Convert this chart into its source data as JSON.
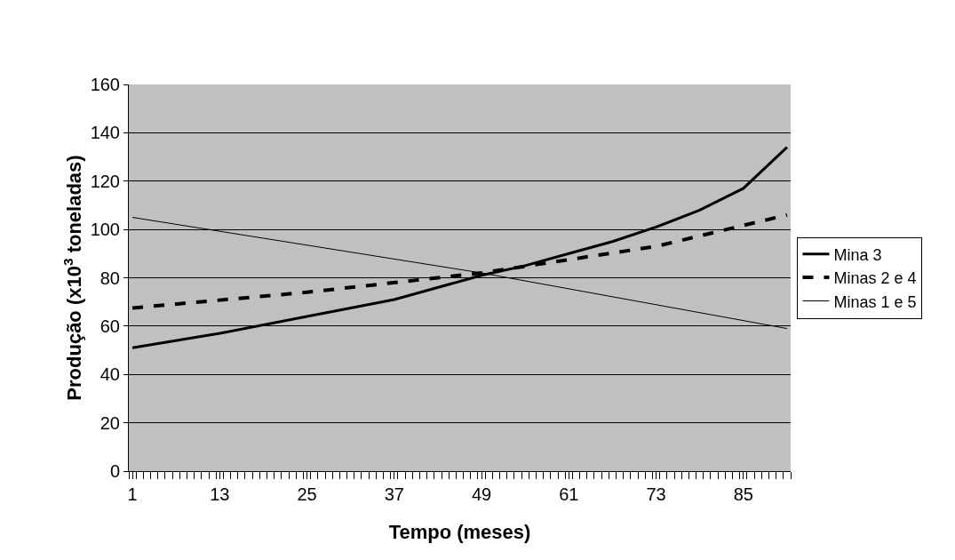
{
  "chart_data": {
    "type": "line",
    "xlabel": "Tempo (meses)",
    "ylabel": "Produção (x10$^{3}$ toneladas)",
    "xlim": [
      0.5,
      91.5
    ],
    "xticks": [
      1,
      13,
      25,
      37,
      49,
      61,
      73,
      85
    ],
    "ylim": [
      0,
      160
    ],
    "yticks": [
      0,
      20,
      40,
      60,
      80,
      100,
      120,
      140,
      160
    ],
    "grid": "y",
    "legend": "right",
    "marker": "none",
    "series": [
      {
        "name": "Mina 3",
        "color": "#000000",
        "line_style": "solid",
        "x": [
          1,
          13,
          25,
          37,
          49,
          55,
          61,
          67,
          73,
          79,
          85,
          91
        ],
        "values": [
          51,
          57,
          64,
          71,
          81,
          85,
          90,
          95,
          101,
          108,
          117,
          134
        ]
      },
      {
        "name": "Minas 2 e 4",
        "color": "#000000",
        "line_style": "dashed",
        "x": [
          1,
          25,
          49,
          73,
          91
        ],
        "values": [
          67.5,
          74,
          82,
          93,
          106
        ]
      },
      {
        "name": "Minas 1 e 5",
        "color": "#000000",
        "line_style": "solid",
        "x": [
          1,
          49,
          91
        ],
        "values": [
          105,
          82,
          59
        ]
      }
    ]
  }
}
